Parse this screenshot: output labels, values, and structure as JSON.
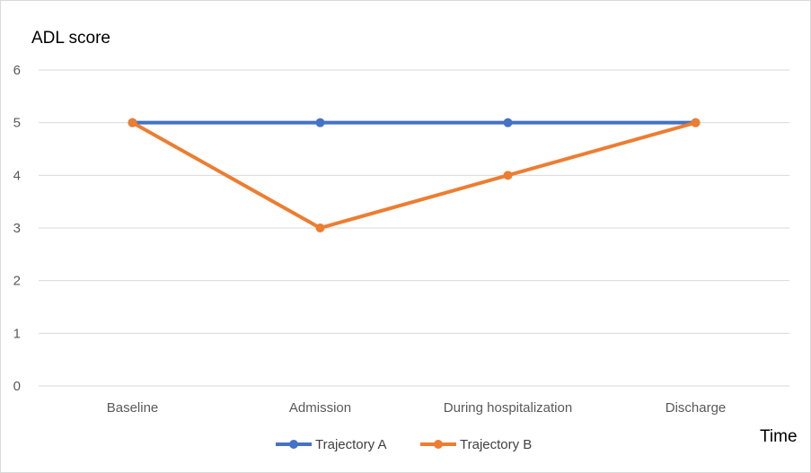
{
  "chart_data": {
    "type": "line",
    "title": "",
    "ylabel": "ADL score",
    "xlabel": "Time",
    "categories": [
      "Baseline",
      "Admission",
      "During hospitalization",
      "Discharge"
    ],
    "ylim": [
      0,
      6
    ],
    "yticks": [
      0,
      1,
      2,
      3,
      4,
      5,
      6
    ],
    "grid": true,
    "legend_position": "bottom",
    "series": [
      {
        "name": "Trajectory A",
        "values": [
          5,
          5,
          5,
          5
        ],
        "color": "#4472c4"
      },
      {
        "name": "Trajectory B",
        "values": [
          5,
          3,
          4,
          5
        ],
        "color": "#ed7d31"
      }
    ]
  }
}
